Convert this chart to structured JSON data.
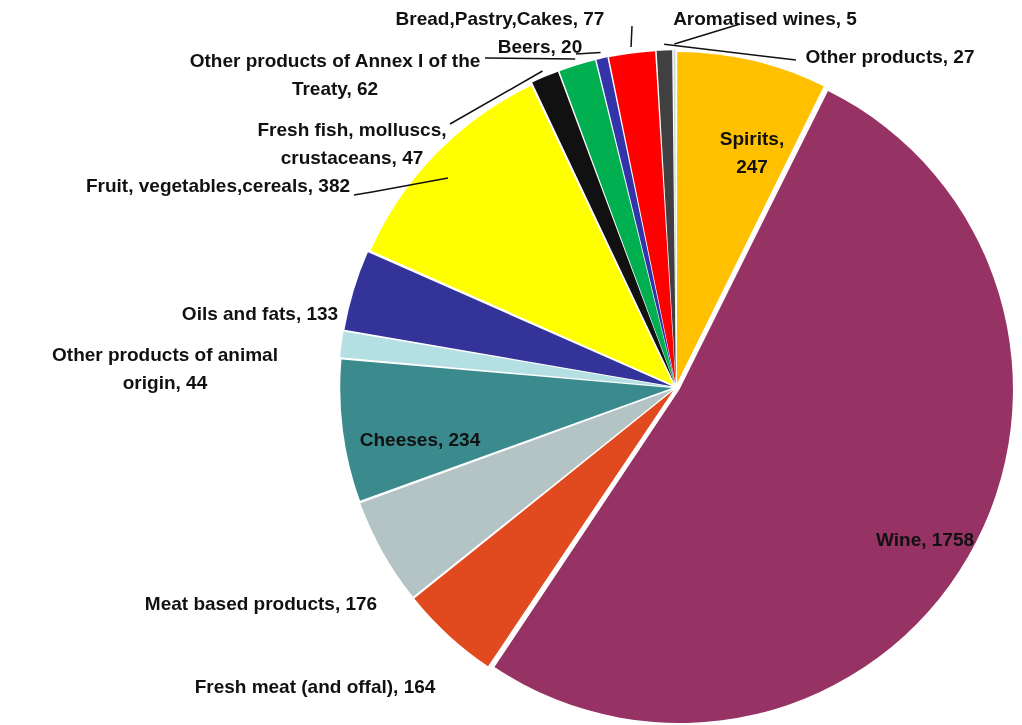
{
  "chart_data": {
    "type": "pie",
    "legend": false,
    "categories": [
      "Spirits, 247",
      "Wine, 1758",
      "Fresh meat (and offal), 164",
      "Meat based products, 176",
      "Cheeses, 234",
      "Other products of animal origin, 44",
      "Oils and fats, 133",
      "Fruit, vegetables,cereals, 382",
      "Fresh fish, molluscs, crustaceans, 47",
      "Other products of Annex I of the Treaty, 62",
      "Beers, 20",
      "Bread,Pastry,Cakes, 77",
      "Other products, 27",
      "Aromatised wines, 5"
    ],
    "values": [
      247,
      1758,
      164,
      176,
      234,
      44,
      133,
      382,
      47,
      62,
      20,
      77,
      27,
      5
    ],
    "colors": [
      "#ffc000",
      "#963264",
      "#e04a1e",
      "#b4c4c4",
      "#3a8a8e",
      "#b4e0e4",
      "#333399",
      "#ffff00",
      "#111111",
      "#00b050",
      "#3333aa",
      "#ff0000",
      "#404040",
      "#c8d8dc"
    ]
  }
}
